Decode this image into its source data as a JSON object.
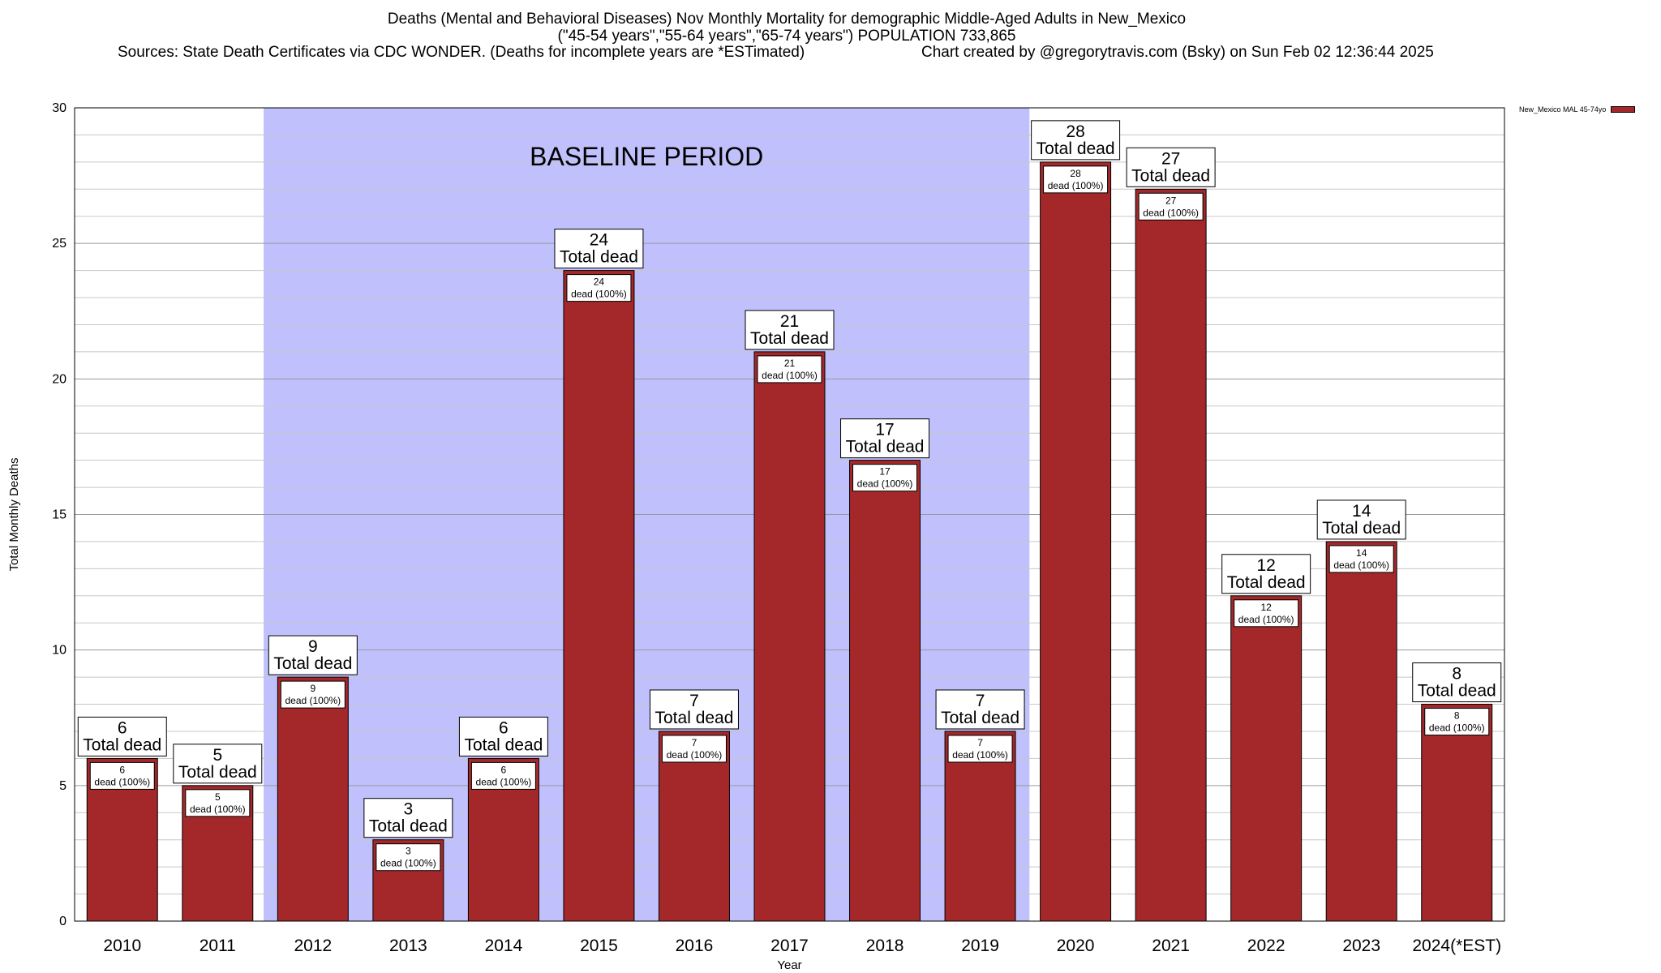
{
  "title": {
    "line1": "Deaths (Mental and Behavioral Diseases) Nov Monthly Mortality for demographic Middle-Aged Adults in New_Mexico",
    "line2": "(\"45-54 years\",\"55-64 years\",\"65-74 years\") POPULATION 733,865",
    "sources": "Sources: State Death Certificates via CDC WONDER. (Deaths for incomplete years are *ESTimated)",
    "credit": "Chart created by @gregorytravis.com (Bsky) on Sun Feb 02 12:36:44 2025"
  },
  "colors": {
    "bar": "#a4282a",
    "baseline_band": "#c0c0fc",
    "grid": "#c8c8c8"
  },
  "chart_data": {
    "type": "bar",
    "categories": [
      "2010",
      "2011",
      "2012",
      "2013",
      "2014",
      "2015",
      "2016",
      "2017",
      "2018",
      "2019",
      "2020",
      "2021",
      "2022",
      "2023",
      "2024(*EST)"
    ],
    "series": [
      {
        "name": "New_Mexico MAL 45-74yo",
        "values": [
          6,
          5,
          9,
          3,
          6,
          24,
          7,
          21,
          17,
          7,
          28,
          27,
          12,
          14,
          8
        ]
      }
    ],
    "total_label_suffix": "Total dead",
    "inner_label_suffix": "dead (100%)",
    "xlabel": "Year",
    "ylabel": "Total Monthly Deaths",
    "ylim": [
      0,
      30
    ],
    "yticks": [
      0,
      5,
      10,
      15,
      20,
      25,
      30
    ],
    "minor_grid_step": 1,
    "grid": true,
    "legend_position": "top-right",
    "annotation": {
      "text": "BASELINE PERIOD",
      "from_category": "2012",
      "to_category": "2019"
    }
  }
}
